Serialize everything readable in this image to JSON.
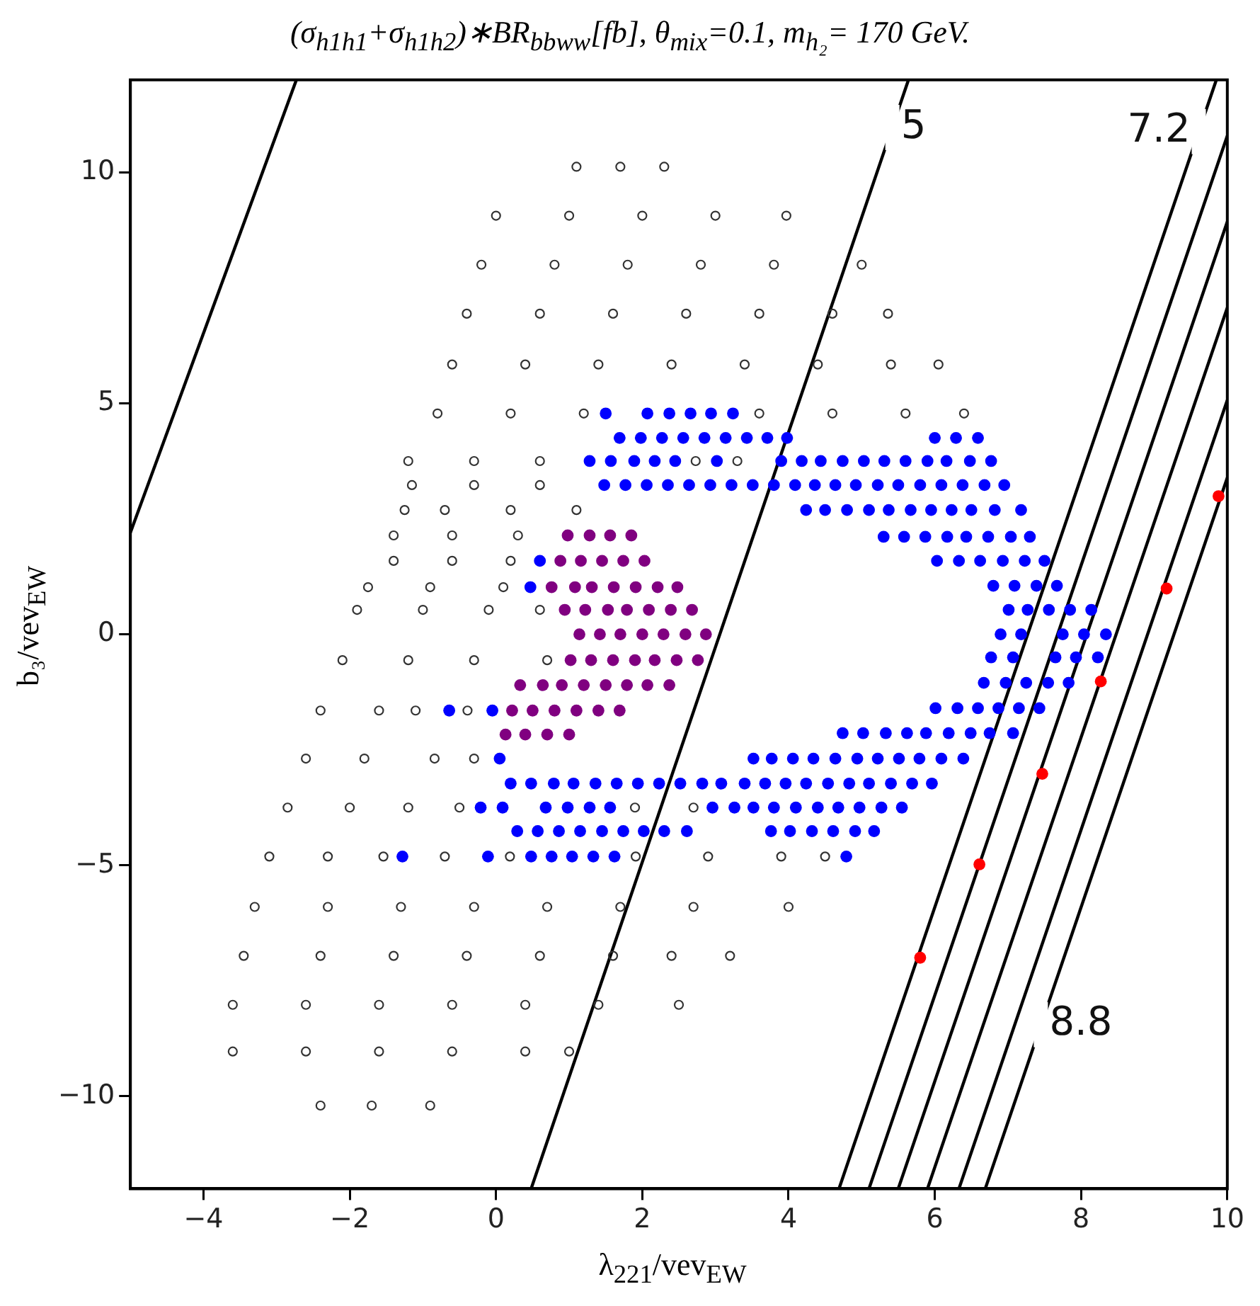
{
  "chart_data": {
    "type": "scatter",
    "title": "(σ$_{h1h1}$+σ$_{h1h2}$)∗BR$_{bbww}$[fb], θ$_{mix}$=0.1, m$_{h₂}$= 170 GeV.",
    "xlabel": "λ$_{221}$/vev$_{EW}$",
    "ylabel": "b₃/vev$_{EW}$",
    "xlim": [
      -5,
      10
    ],
    "ylim": [
      -12,
      12
    ],
    "xticks": [
      -4,
      -2,
      0,
      2,
      4,
      6,
      8,
      10
    ],
    "yticks": [
      -10,
      -5,
      0,
      5,
      10
    ],
    "grid": false,
    "series": [
      {
        "color": "#333333",
        "x": [
          1.1,
          1.7,
          2.3,
          0.0,
          1.0,
          2.0,
          3.0,
          3.97,
          -0.2,
          0.8,
          1.8,
          2.8,
          3.8,
          5.0,
          -0.4,
          0.6,
          1.6,
          2.6,
          3.6,
          4.6,
          5.36,
          -0.6,
          0.4,
          1.4,
          2.4,
          3.4,
          4.4,
          5.4,
          6.05,
          -0.8,
          0.2,
          1.2,
          3.6,
          4.6,
          5.6,
          6.4,
          -1.2,
          -0.3,
          0.6,
          2.73,
          3.3,
          -1.15,
          -0.3,
          0.6,
          -1.25,
          -0.7,
          0.2,
          1.1,
          -1.4,
          -0.6,
          0.3,
          -1.4,
          -0.6,
          0.2,
          -1.75,
          -0.9,
          0.1,
          -1.9,
          -1.0,
          -0.1,
          0.6,
          -2.1,
          -1.2,
          -0.3,
          0.7,
          -2.4,
          -1.6,
          -1.1,
          -0.39,
          -2.6,
          -1.8,
          -0.84,
          -0.3,
          -2.85,
          -2.0,
          -1.2,
          -0.5,
          1.9,
          2.7,
          -3.1,
          -2.3,
          -1.54,
          -0.7,
          0.19,
          1.91,
          2.9,
          3.9,
          4.5,
          -3.3,
          -2.3,
          -1.3,
          -0.3,
          0.7,
          1.7,
          2.7,
          4.0,
          -3.45,
          -2.4,
          -1.4,
          -0.4,
          0.6,
          1.6,
          2.4,
          3.2,
          -3.6,
          -2.6,
          -1.6,
          -0.6,
          0.4,
          1.4,
          2.5,
          -3.6,
          -2.6,
          -1.6,
          -0.6,
          0.4,
          1.0,
          -2.4,
          -1.7,
          -0.9
        ],
        "values": [
          10.12,
          10.12,
          10.12,
          9.06,
          9.06,
          9.06,
          9.06,
          9.06,
          8.0,
          8.0,
          8.0,
          8.0,
          8.0,
          8.0,
          6.94,
          6.94,
          6.94,
          6.94,
          6.94,
          6.94,
          6.94,
          5.84,
          5.84,
          5.84,
          5.84,
          5.84,
          5.84,
          5.84,
          5.84,
          4.78,
          4.78,
          4.78,
          4.78,
          4.78,
          4.78,
          4.78,
          3.75,
          3.75,
          3.75,
          3.75,
          3.75,
          3.23,
          3.23,
          3.23,
          2.69,
          2.69,
          2.69,
          2.69,
          2.14,
          2.14,
          2.14,
          1.59,
          1.59,
          1.59,
          1.02,
          1.02,
          1.02,
          0.53,
          0.53,
          0.53,
          0.53,
          -0.56,
          -0.56,
          -0.56,
          -0.56,
          -1.65,
          -1.65,
          -1.65,
          -1.65,
          -2.69,
          -2.69,
          -2.69,
          -2.69,
          -3.75,
          -3.75,
          -3.75,
          -3.75,
          -3.75,
          -3.75,
          -4.81,
          -4.81,
          -4.81,
          -4.81,
          -4.81,
          -4.81,
          -4.81,
          -4.81,
          -4.81,
          -5.9,
          -5.9,
          -5.9,
          -5.9,
          -5.9,
          -5.9,
          -5.9,
          -5.9,
          -6.96,
          -6.96,
          -6.96,
          -6.96,
          -6.96,
          -6.96,
          -6.96,
          -6.96,
          -8.02,
          -8.02,
          -8.02,
          -8.02,
          -8.02,
          -8.02,
          -8.02,
          -9.03,
          -9.03,
          -9.03,
          -9.03,
          -9.03,
          -9.03,
          -10.2,
          -10.2,
          -10.2
        ]
      },
      {
        "marker": "circle",
        "color": "#0000ff",
        "x": [
          1.5,
          2.07,
          2.37,
          2.66,
          2.94,
          3.24,
          1.69,
          1.98,
          2.27,
          2.56,
          2.85,
          3.14,
          3.43,
          3.71,
          3.98,
          6.0,
          6.29,
          6.59,
          1.28,
          1.57,
          1.89,
          2.17,
          2.45,
          3.02,
          3.9,
          4.18,
          4.44,
          4.74,
          5.03,
          5.31,
          5.6,
          5.9,
          6.16,
          6.48,
          6.77,
          1.48,
          1.77,
          2.06,
          2.35,
          2.64,
          2.93,
          3.22,
          3.51,
          3.8,
          4.09,
          4.36,
          4.64,
          4.92,
          5.22,
          5.5,
          5.8,
          6.09,
          6.38,
          6.68,
          6.95,
          4.24,
          4.5,
          4.8,
          5.1,
          5.37,
          5.67,
          5.95,
          6.23,
          6.5,
          6.82,
          7.18,
          5.3,
          5.58,
          5.87,
          6.17,
          6.43,
          6.73,
          7.04,
          7.3,
          0.6,
          6.03,
          6.33,
          6.62,
          6.93,
          7.23,
          7.5,
          0.47,
          6.8,
          7.09,
          7.39,
          7.67,
          7.01,
          7.27,
          7.56,
          7.85,
          8.14,
          6.9,
          7.18,
          7.75,
          8.04,
          8.34,
          6.77,
          7.07,
          7.65,
          7.93,
          8.23,
          6.67,
          6.97,
          7.25,
          7.55,
          7.83,
          -0.64,
          -0.05,
          6.01,
          6.31,
          6.59,
          6.87,
          7.15,
          7.43,
          4.74,
          5.02,
          5.33,
          5.62,
          5.88,
          6.19,
          6.49,
          6.75,
          7.07,
          0.05,
          3.52,
          3.77,
          4.06,
          4.34,
          4.64,
          4.94,
          5.22,
          5.51,
          5.79,
          6.09,
          6.39,
          0.2,
          0.48,
          0.79,
          1.06,
          1.36,
          1.65,
          1.94,
          2.23,
          2.52,
          2.82,
          3.08,
          3.4,
          3.68,
          3.96,
          4.24,
          4.54,
          4.83,
          5.1,
          5.4,
          5.69,
          5.96,
          -0.21,
          0.09,
          0.68,
          0.98,
          1.28,
          1.56,
          2.96,
          3.26,
          3.52,
          3.8,
          4.1,
          4.4,
          4.68,
          4.97,
          5.27,
          5.55,
          0.29,
          0.57,
          0.86,
          1.15,
          1.45,
          1.74,
          2.02,
          2.3,
          2.61,
          3.76,
          4.02,
          4.32,
          4.61,
          4.91,
          5.17,
          -1.28,
          -0.11,
          0.48,
          0.76,
          1.04,
          1.33,
          1.62,
          4.79
        ],
        "values": [
          4.78,
          4.78,
          4.78,
          4.78,
          4.78,
          4.78,
          4.25,
          4.25,
          4.25,
          4.25,
          4.25,
          4.25,
          4.25,
          4.25,
          4.25,
          4.25,
          4.25,
          4.25,
          3.75,
          3.75,
          3.75,
          3.75,
          3.75,
          3.75,
          3.75,
          3.75,
          3.75,
          3.75,
          3.75,
          3.75,
          3.75,
          3.75,
          3.75,
          3.75,
          3.75,
          3.23,
          3.23,
          3.23,
          3.23,
          3.23,
          3.23,
          3.23,
          3.23,
          3.23,
          3.23,
          3.23,
          3.23,
          3.23,
          3.23,
          3.23,
          3.23,
          3.23,
          3.23,
          3.23,
          3.23,
          2.69,
          2.69,
          2.69,
          2.69,
          2.69,
          2.69,
          2.69,
          2.69,
          2.69,
          2.69,
          2.69,
          2.11,
          2.11,
          2.11,
          2.11,
          2.11,
          2.11,
          2.11,
          2.11,
          1.59,
          1.59,
          1.59,
          1.59,
          1.59,
          1.59,
          1.59,
          1.02,
          1.05,
          1.05,
          1.05,
          1.05,
          0.53,
          0.53,
          0.53,
          0.53,
          0.53,
          0.0,
          0.0,
          0.0,
          0.0,
          0.0,
          -0.5,
          -0.5,
          -0.5,
          -0.5,
          -0.5,
          -1.05,
          -1.05,
          -1.05,
          -1.05,
          -1.05,
          -1.65,
          -1.65,
          -1.6,
          -1.6,
          -1.6,
          -1.6,
          -1.6,
          -1.6,
          -2.14,
          -2.14,
          -2.14,
          -2.14,
          -2.14,
          -2.14,
          -2.14,
          -2.14,
          -2.14,
          -2.69,
          -2.69,
          -2.69,
          -2.69,
          -2.69,
          -2.69,
          -2.69,
          -2.69,
          -2.69,
          -2.69,
          -2.69,
          -2.69,
          -3.23,
          -3.23,
          -3.23,
          -3.23,
          -3.23,
          -3.23,
          -3.23,
          -3.23,
          -3.23,
          -3.23,
          -3.23,
          -3.23,
          -3.23,
          -3.23,
          -3.23,
          -3.23,
          -3.23,
          -3.23,
          -3.23,
          -3.23,
          -3.23,
          -3.75,
          -3.75,
          -3.75,
          -3.75,
          -3.75,
          -3.75,
          -3.75,
          -3.75,
          -3.75,
          -3.75,
          -3.75,
          -3.75,
          -3.75,
          -3.75,
          -3.75,
          -3.75,
          -4.26,
          -4.26,
          -4.26,
          -4.26,
          -4.26,
          -4.26,
          -4.26,
          -4.26,
          -4.26,
          -4.26,
          -4.26,
          -4.26,
          -4.26,
          -4.26,
          -4.26,
          -4.81,
          -4.81,
          -4.81,
          -4.81,
          -4.81,
          -4.81,
          -4.81,
          -4.81
        ]
      },
      {
        "marker": "circle",
        "color": "#800080",
        "x": [
          0.98,
          1.28,
          1.56,
          1.85,
          0.88,
          1.16,
          1.45,
          1.74,
          2.03,
          0.76,
          1.08,
          1.31,
          1.61,
          1.91,
          2.21,
          2.48,
          0.94,
          1.22,
          1.53,
          1.79,
          2.09,
          2.39,
          2.68,
          1.14,
          1.42,
          1.7,
          2.0,
          2.29,
          2.59,
          2.87,
          1.02,
          1.3,
          1.6,
          1.9,
          2.17,
          2.47,
          2.76,
          0.33,
          0.64,
          0.9,
          1.2,
          1.5,
          1.79,
          2.07,
          2.37,
          0.22,
          0.5,
          0.8,
          1.1,
          1.4,
          1.69,
          0.13,
          0.4,
          0.7,
          1.0
        ],
        "values": [
          2.14,
          2.14,
          2.14,
          2.14,
          1.59,
          1.59,
          1.59,
          1.59,
          1.59,
          1.02,
          1.02,
          1.02,
          1.02,
          1.02,
          1.02,
          1.02,
          0.53,
          0.53,
          0.53,
          0.53,
          0.53,
          0.53,
          0.53,
          0.0,
          0.0,
          0.0,
          0.0,
          0.0,
          0.0,
          0.0,
          -0.56,
          -0.56,
          -0.56,
          -0.56,
          -0.56,
          -0.56,
          -0.56,
          -1.1,
          -1.1,
          -1.1,
          -1.1,
          -1.1,
          -1.1,
          -1.1,
          -1.1,
          -1.65,
          -1.65,
          -1.65,
          -1.65,
          -1.65,
          -1.65,
          -2.17,
          -2.17,
          -2.17,
          -2.17
        ]
      },
      {
        "marker": "circle",
        "color": "#ff0000",
        "x": [
          5.8,
          6.61,
          7.47,
          8.27,
          9.17,
          9.88
        ],
        "values": [
          -7.0,
          -4.98,
          -3.02,
          -1.02,
          0.99,
          2.99
        ]
      },
      {
        "type": "line",
        "color": "#000000",
        "x": [
          -5,
          -2.73
        ],
        "values": [
          2.2,
          12
        ]
      },
      {
        "type": "line",
        "color": "#000000",
        "x": [
          0.48,
          5.64
        ],
        "values": [
          -12,
          12
        ]
      },
      {
        "type": "line",
        "color": "#000000",
        "x": [
          4.69,
          9.85
        ],
        "values": [
          -12,
          12
        ]
      },
      {
        "type": "line",
        "color": "#000000",
        "x": [
          5.1,
          10
        ],
        "values": [
          -12,
          10.79
        ]
      },
      {
        "type": "line",
        "color": "#000000",
        "x": [
          5.5,
          10
        ],
        "values": [
          -12,
          8.93
        ]
      },
      {
        "type": "line",
        "color": "#000000",
        "x": [
          5.9,
          10
        ],
        "values": [
          -12,
          7.07
        ]
      },
      {
        "type": "line",
        "color": "#000000",
        "x": [
          6.33,
          10
        ],
        "values": [
          -12,
          5.07
        ]
      },
      {
        "type": "line",
        "color": "#000000",
        "x": [
          6.69,
          10
        ],
        "values": [
          -12,
          3.39
        ]
      }
    ],
    "annotations": [
      {
        "text": "5",
        "x": 5.42,
        "y": 10.97
      },
      {
        "text": "7.2",
        "x": 9.61,
        "y": 10.88
      },
      {
        "text": "8.8",
        "x": 7.45,
        "y": -8.45
      }
    ]
  }
}
